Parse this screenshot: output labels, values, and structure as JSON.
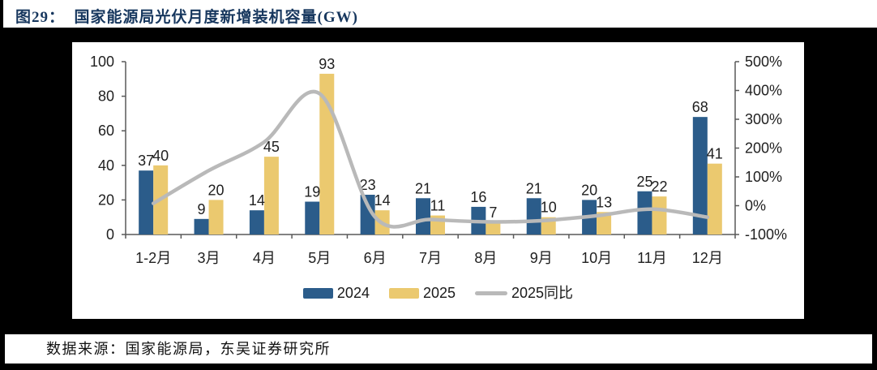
{
  "title": "图29：  国家能源局光伏月度新增装机容量(GW)",
  "source": "数据来源：国家能源局，东吴证券研究所",
  "colors": {
    "title_navy": "#17375E",
    "bar_2024": "#2B5C8A",
    "bar_2025": "#EBC96F",
    "yoy_line": "#B9B9B9",
    "chart_text": "#1F1F1F",
    "axis": "#595959",
    "page_background": "#000000",
    "panel_background": "#FFFFFF"
  },
  "chart_data": {
    "type": "bar",
    "subtype": "grouped bars with smoothed YoY line on secondary axis",
    "title": "国家能源局光伏月度新增装机容量(GW)",
    "categories": [
      "1-2月",
      "3月",
      "4月",
      "5月",
      "6月",
      "7月",
      "8月",
      "9月",
      "10月",
      "11月",
      "12月"
    ],
    "series": [
      {
        "name": "2024",
        "type": "bar",
        "axis": "left",
        "color": "#2B5C8A",
        "values": [
          37,
          9,
          14,
          19,
          23,
          21,
          16,
          21,
          20,
          25,
          68
        ]
      },
      {
        "name": "2025",
        "type": "bar",
        "axis": "left",
        "color": "#EBC96F",
        "values": [
          40,
          20,
          45,
          93,
          14,
          11,
          7,
          10,
          13,
          22,
          41
        ]
      },
      {
        "name": "2025同比",
        "type": "line",
        "axis": "right",
        "color": "#B9B9B9",
        "values_pct": [
          8,
          122,
          221,
          389,
          -39,
          -48,
          -56,
          -52,
          -35,
          -12,
          -40
        ]
      }
    ],
    "left_axis": {
      "min": 0,
      "max": 100,
      "ticks": [
        0,
        20,
        40,
        60,
        80,
        100
      ]
    },
    "right_axis": {
      "min": -100,
      "max": 500,
      "tick_labels": [
        "-100%",
        "0%",
        "100%",
        "200%",
        "300%",
        "400%",
        "500%"
      ]
    },
    "legend": [
      "2024",
      "2025",
      "2025同比"
    ],
    "legend_position": "bottom",
    "grid": false,
    "data_labels": true
  }
}
